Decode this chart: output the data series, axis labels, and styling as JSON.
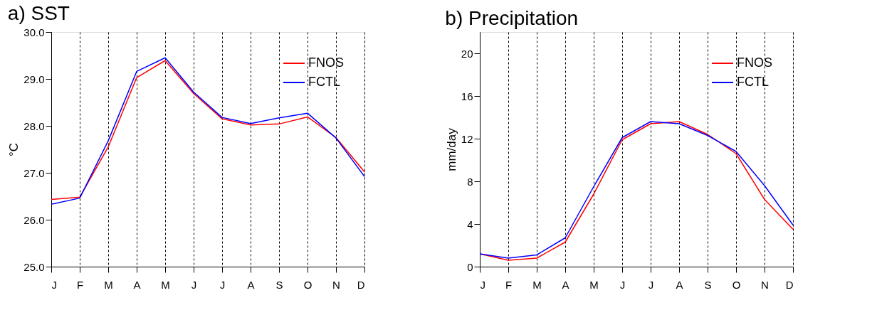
{
  "chart_data": [
    {
      "type": "line",
      "title": "a) SST",
      "ylabel": "°C",
      "categories": [
        "J",
        "F",
        "M",
        "A",
        "M",
        "J",
        "J",
        "A",
        "S",
        "O",
        "N",
        "D"
      ],
      "ylim": [
        25,
        30
      ],
      "yticks": [
        {
          "value": 25,
          "label": "25.0"
        },
        {
          "value": 26,
          "label": "26.0"
        },
        {
          "value": 27,
          "label": "27.0"
        },
        {
          "value": 28,
          "label": "28.0"
        },
        {
          "value": 29,
          "label": "29.0"
        },
        {
          "value": 30,
          "label": "30.0"
        }
      ],
      "grid": "x",
      "legend": "top right",
      "line_style": "solid",
      "series": [
        {
          "name": "FNOS",
          "color": "#ff0000",
          "values": [
            26.43,
            26.48,
            27.55,
            29.03,
            29.39,
            28.69,
            28.15,
            28.02,
            28.04,
            28.19,
            27.75,
            27.02
          ]
        },
        {
          "name": "FCTL",
          "color": "#0000ff",
          "values": [
            26.33,
            26.46,
            27.68,
            29.16,
            29.45,
            28.72,
            28.18,
            28.05,
            28.17,
            28.27,
            27.74,
            26.92
          ]
        }
      ]
    },
    {
      "type": "line",
      "title": "b) Precipitation",
      "ylabel": "mm/day",
      "categories": [
        "J",
        "F",
        "M",
        "A",
        "M",
        "J",
        "J",
        "A",
        "S",
        "O",
        "N",
        "D"
      ],
      "ylim": [
        0,
        22
      ],
      "yticks": [
        0,
        4,
        8,
        12,
        16,
        20
      ],
      "grid": "x",
      "legend": "top right",
      "line_style": "solid",
      "series": [
        {
          "name": "FNOS",
          "color": "#ff0000",
          "values": [
            1.2,
            0.6,
            0.8,
            2.3,
            6.8,
            11.9,
            13.4,
            13.6,
            12.4,
            10.6,
            6.3,
            3.5
          ]
        },
        {
          "name": "FCTL",
          "color": "#0000ff",
          "values": [
            1.2,
            0.8,
            1.1,
            2.7,
            7.5,
            12.1,
            13.6,
            13.4,
            12.3,
            10.8,
            7.6,
            3.9
          ]
        }
      ]
    }
  ]
}
